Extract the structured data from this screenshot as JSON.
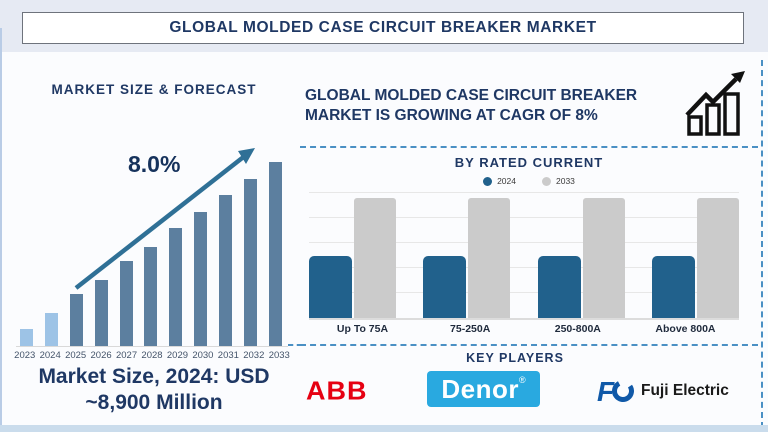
{
  "page": {
    "title": "GLOBAL MOLDED CASE CIRCUIT BREAKER MARKET"
  },
  "left_panel": {
    "heading": "MARKET SIZE & FORECAST",
    "market_size_line1": "Market Size, 2024: USD",
    "market_size_line2": "~8,900 Million"
  },
  "right_panel": {
    "headline_line1": "GLOBAL MOLDED CASE CIRCUIT BREAKER",
    "headline_line2": "MARKET IS GROWING AT CAGR OF 8%",
    "key_players_heading": "KEY PLAYERS",
    "key_players": [
      "ABB",
      "Denor",
      "Fuji Electric"
    ],
    "denor_registered_mark": "®"
  },
  "chart_data": [
    {
      "type": "bar",
      "title": "MARKET SIZE & FORECAST",
      "categories": [
        "2023",
        "2024",
        "2025",
        "2026",
        "2027",
        "2028",
        "2029",
        "2030",
        "2031",
        "2032",
        "2033"
      ],
      "values": [
        9,
        18,
        28,
        36,
        46,
        54,
        64,
        73,
        82,
        91,
        100
      ],
      "ylim": [
        0,
        100
      ],
      "unit": "relative height (no y-axis labels shown)",
      "annotation": "8.0%",
      "note": "Market Size, 2024: USD ~8,900 Million",
      "bar_colors": [
        "#9DC3E6",
        "#9DC3E6",
        "#5C7F9F",
        "#5C7F9F",
        "#5C7F9F",
        "#5C7F9F",
        "#5C7F9F",
        "#5C7F9F",
        "#5C7F9F",
        "#5C7F9F",
        "#5C7F9F"
      ],
      "legend_position": "none",
      "grid": false
    },
    {
      "type": "bar",
      "title": "BY RATED CURRENT",
      "categories": [
        "Up To 75A",
        "75-250A",
        "250-800A",
        "Above 800A"
      ],
      "series": [
        {
          "name": "2024",
          "color": "#21618C",
          "values": [
            52,
            52,
            52,
            52
          ]
        },
        {
          "name": "2033",
          "color": "#CBCBCB",
          "values": [
            100,
            100,
            100,
            100
          ]
        }
      ],
      "ylim": [
        0,
        100
      ],
      "unit": "relative height (no y-axis labels shown)",
      "legend_position": "top",
      "grid": true
    }
  ],
  "colors": {
    "navy": "#1F3864",
    "light_bar": "#9DC3E6",
    "steel_bar": "#5C7F9F",
    "arrow": "#2F7096",
    "series_2024": "#21618C",
    "series_2033": "#CBCBCB",
    "dashed_line": "#4A90C4",
    "abb_red": "#E60012",
    "denor_cyan": "#29A9E0",
    "fuji_blue": "#1059A8",
    "top_band": "#E6EAF3",
    "bottom_strip": "#CADCEC"
  }
}
